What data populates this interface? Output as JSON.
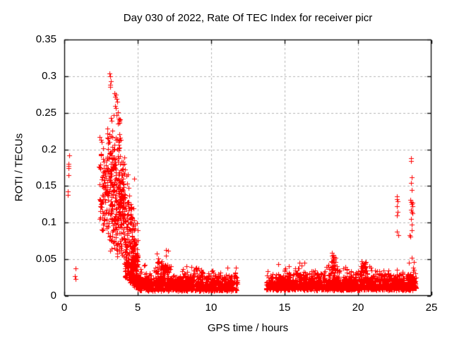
{
  "figure": {
    "title": "Day 030 of 2022, Rate Of TEC Index for receiver picr",
    "x_axis": {
      "label": "GPS time / hours",
      "min": 0,
      "max": 25,
      "ticks": [
        0,
        5,
        10,
        15,
        20,
        25
      ],
      "tick_labels": [
        "0",
        "5",
        "10",
        "15",
        "20",
        "25"
      ]
    },
    "y_axis": {
      "label": "ROTI / TECUs",
      "min": 0,
      "max": 0.35,
      "ticks": [
        0,
        0.05,
        0.1,
        0.15,
        0.2,
        0.25,
        0.3,
        0.35
      ],
      "tick_labels": [
        "0",
        "0.05",
        "0.1",
        "0.15",
        "0.2",
        "0.25",
        "0.3",
        "0.35"
      ]
    },
    "style": {
      "marker": "plus",
      "marker_color": "#ff0000",
      "marker_size": 7,
      "axis_color": "#000000",
      "grid_color": "#b3b3b3",
      "background": "#ffffff",
      "grid": "dashed"
    }
  },
  "chart_data": {
    "type": "scatter",
    "title": "Day 030 of 2022, Rate Of TEC Index for receiver picr",
    "xlabel": "GPS time / hours",
    "ylabel": "ROTI / TECUs",
    "xlim": [
      0,
      25
    ],
    "ylim": [
      0,
      0.35
    ],
    "legend": null,
    "grid": true,
    "seed": 1234,
    "points": [
      [
        0.33,
        0.192
      ],
      [
        0.3,
        0.18
      ],
      [
        0.31,
        0.177
      ],
      [
        0.3,
        0.175
      ],
      [
        0.3,
        0.165
      ],
      [
        0.26,
        0.143
      ],
      [
        0.26,
        0.138
      ],
      [
        0.78,
        0.038
      ],
      [
        0.73,
        0.027
      ],
      [
        0.76,
        0.023
      ],
      [
        2.42,
        0.217
      ],
      [
        2.5,
        0.213
      ],
      [
        2.56,
        0.21
      ],
      [
        3.1,
        0.304
      ],
      [
        3.11,
        0.3
      ],
      [
        3.16,
        0.293
      ],
      [
        3.13,
        0.288
      ],
      [
        3.12,
        0.285
      ],
      [
        3.42,
        0.277
      ],
      [
        3.5,
        0.275
      ],
      [
        3.47,
        0.272
      ],
      [
        3.56,
        0.269
      ],
      [
        3.62,
        0.265
      ],
      [
        3.45,
        0.259
      ],
      [
        3.51,
        0.256
      ],
      [
        3.65,
        0.251
      ],
      [
        3.35,
        0.247
      ],
      [
        3.58,
        0.247
      ],
      [
        3.72,
        0.242
      ],
      [
        3.76,
        0.24
      ],
      [
        3.78,
        0.241
      ],
      [
        3.74,
        0.238
      ],
      [
        3.73,
        0.236
      ],
      [
        4.76,
        0.16
      ],
      [
        5.02,
        0.056
      ],
      [
        6.3,
        0.058
      ],
      [
        6.9,
        0.055
      ],
      [
        6.93,
        0.063
      ],
      [
        7.06,
        0.062
      ],
      [
        22.63,
        0.136
      ],
      [
        22.66,
        0.132
      ],
      [
        22.69,
        0.129
      ],
      [
        22.64,
        0.122
      ],
      [
        22.67,
        0.115
      ],
      [
        22.65,
        0.11
      ],
      [
        22.66,
        0.088
      ],
      [
        22.72,
        0.083
      ],
      [
        23.5,
        0.083
      ],
      [
        23.62,
        0.188
      ],
      [
        23.62,
        0.184
      ],
      [
        23.63,
        0.162
      ],
      [
        23.62,
        0.154
      ],
      [
        23.66,
        0.145
      ],
      [
        23.58,
        0.131
      ],
      [
        23.62,
        0.128
      ],
      [
        23.68,
        0.127
      ],
      [
        23.64,
        0.125
      ],
      [
        23.7,
        0.122
      ],
      [
        23.6,
        0.118
      ],
      [
        23.65,
        0.115
      ],
      [
        23.72,
        0.113
      ],
      [
        23.6,
        0.105
      ],
      [
        23.67,
        0.097
      ],
      [
        23.63,
        0.09
      ],
      [
        23.55,
        0.081
      ],
      [
        23.64,
        0.052
      ]
    ],
    "clusters": [
      {
        "x0": 2.35,
        "x1": 2.62,
        "n": 30,
        "y0": 0.08,
        "y1": 0.2,
        "dist": "mid"
      },
      {
        "x0": 2.62,
        "x1": 2.9,
        "n": 45,
        "y0": 0.06,
        "y1": 0.22,
        "dist": "mid"
      },
      {
        "x0": 2.9,
        "x1": 3.2,
        "n": 70,
        "y0": 0.05,
        "y1": 0.26,
        "dist": "mid"
      },
      {
        "x0": 3.2,
        "x1": 3.5,
        "n": 80,
        "y0": 0.05,
        "y1": 0.25,
        "dist": "mid"
      },
      {
        "x0": 3.5,
        "x1": 3.8,
        "n": 90,
        "y0": 0.04,
        "y1": 0.24,
        "dist": "mid"
      },
      {
        "x0": 3.8,
        "x1": 4.1,
        "n": 90,
        "y0": 0.03,
        "y1": 0.22,
        "dist": "mid"
      },
      {
        "x0": 4.1,
        "x1": 4.4,
        "n": 100,
        "y0": 0.025,
        "y1": 0.19,
        "dist": "low"
      },
      {
        "x0": 4.4,
        "x1": 4.7,
        "n": 120,
        "y0": 0.018,
        "y1": 0.155,
        "dist": "low"
      },
      {
        "x0": 4.7,
        "x1": 5.0,
        "n": 140,
        "y0": 0.012,
        "y1": 0.115,
        "dist": "low"
      },
      {
        "x0": 5.0,
        "x1": 5.6,
        "n": 95,
        "y0": 0.007,
        "y1": 0.048,
        "dist": "band"
      },
      {
        "x0": 5.6,
        "x1": 6.1,
        "n": 90,
        "y0": 0.007,
        "y1": 0.038,
        "dist": "band"
      },
      {
        "x0": 6.1,
        "x1": 6.7,
        "n": 100,
        "y0": 0.007,
        "y1": 0.05,
        "dist": "band"
      },
      {
        "x0": 6.7,
        "x1": 7.3,
        "n": 95,
        "y0": 0.007,
        "y1": 0.052,
        "dist": "band"
      },
      {
        "x0": 6.2,
        "x1": 7.1,
        "n": 40,
        "y0": 0.022,
        "y1": 0.056,
        "dist": "mid"
      },
      {
        "x0": 7.3,
        "x1": 8.0,
        "n": 105,
        "y0": 0.007,
        "y1": 0.038,
        "dist": "band"
      },
      {
        "x0": 8.0,
        "x1": 8.7,
        "n": 105,
        "y0": 0.007,
        "y1": 0.044,
        "dist": "band"
      },
      {
        "x0": 8.7,
        "x1": 9.6,
        "n": 125,
        "y0": 0.007,
        "y1": 0.047,
        "dist": "band"
      },
      {
        "x0": 9.6,
        "x1": 10.4,
        "n": 115,
        "y0": 0.007,
        "y1": 0.04,
        "dist": "band"
      },
      {
        "x0": 10.4,
        "x1": 11.1,
        "n": 105,
        "y0": 0.007,
        "y1": 0.044,
        "dist": "band"
      },
      {
        "x0": 11.1,
        "x1": 11.8,
        "n": 95,
        "y0": 0.007,
        "y1": 0.042,
        "dist": "band"
      },
      {
        "x0": 13.72,
        "x1": 14.3,
        "n": 90,
        "y0": 0.008,
        "y1": 0.042,
        "dist": "band"
      },
      {
        "x0": 14.3,
        "x1": 15.0,
        "n": 105,
        "y0": 0.008,
        "y1": 0.047,
        "dist": "band"
      },
      {
        "x0": 15.0,
        "x1": 15.7,
        "n": 105,
        "y0": 0.008,
        "y1": 0.045,
        "dist": "band"
      },
      {
        "x0": 15.7,
        "x1": 16.4,
        "n": 105,
        "y0": 0.008,
        "y1": 0.049,
        "dist": "band"
      },
      {
        "x0": 16.4,
        "x1": 17.1,
        "n": 105,
        "y0": 0.008,
        "y1": 0.045,
        "dist": "band"
      },
      {
        "x0": 17.1,
        "x1": 17.8,
        "n": 100,
        "y0": 0.008,
        "y1": 0.041,
        "dist": "band"
      },
      {
        "x0": 17.8,
        "x1": 18.6,
        "n": 110,
        "y0": 0.008,
        "y1": 0.046,
        "dist": "band"
      },
      {
        "x0": 18.15,
        "x1": 18.45,
        "n": 30,
        "y0": 0.022,
        "y1": 0.062,
        "dist": "mid"
      },
      {
        "x0": 18.6,
        "x1": 19.3,
        "n": 105,
        "y0": 0.008,
        "y1": 0.044,
        "dist": "band"
      },
      {
        "x0": 19.3,
        "x1": 20.0,
        "n": 100,
        "y0": 0.008,
        "y1": 0.039,
        "dist": "band"
      },
      {
        "x0": 20.0,
        "x1": 20.7,
        "n": 110,
        "y0": 0.008,
        "y1": 0.046,
        "dist": "band"
      },
      {
        "x0": 20.2,
        "x1": 20.55,
        "n": 25,
        "y0": 0.022,
        "y1": 0.056,
        "dist": "mid"
      },
      {
        "x0": 20.7,
        "x1": 21.4,
        "n": 105,
        "y0": 0.008,
        "y1": 0.041,
        "dist": "band"
      },
      {
        "x0": 21.4,
        "x1": 22.1,
        "n": 105,
        "y0": 0.008,
        "y1": 0.045,
        "dist": "band"
      },
      {
        "x0": 22.1,
        "x1": 22.8,
        "n": 100,
        "y0": 0.008,
        "y1": 0.039,
        "dist": "band"
      },
      {
        "x0": 22.8,
        "x1": 23.4,
        "n": 100,
        "y0": 0.008,
        "y1": 0.041,
        "dist": "band"
      },
      {
        "x0": 23.4,
        "x1": 23.95,
        "n": 100,
        "y0": 0.008,
        "y1": 0.047,
        "dist": "band"
      }
    ]
  }
}
